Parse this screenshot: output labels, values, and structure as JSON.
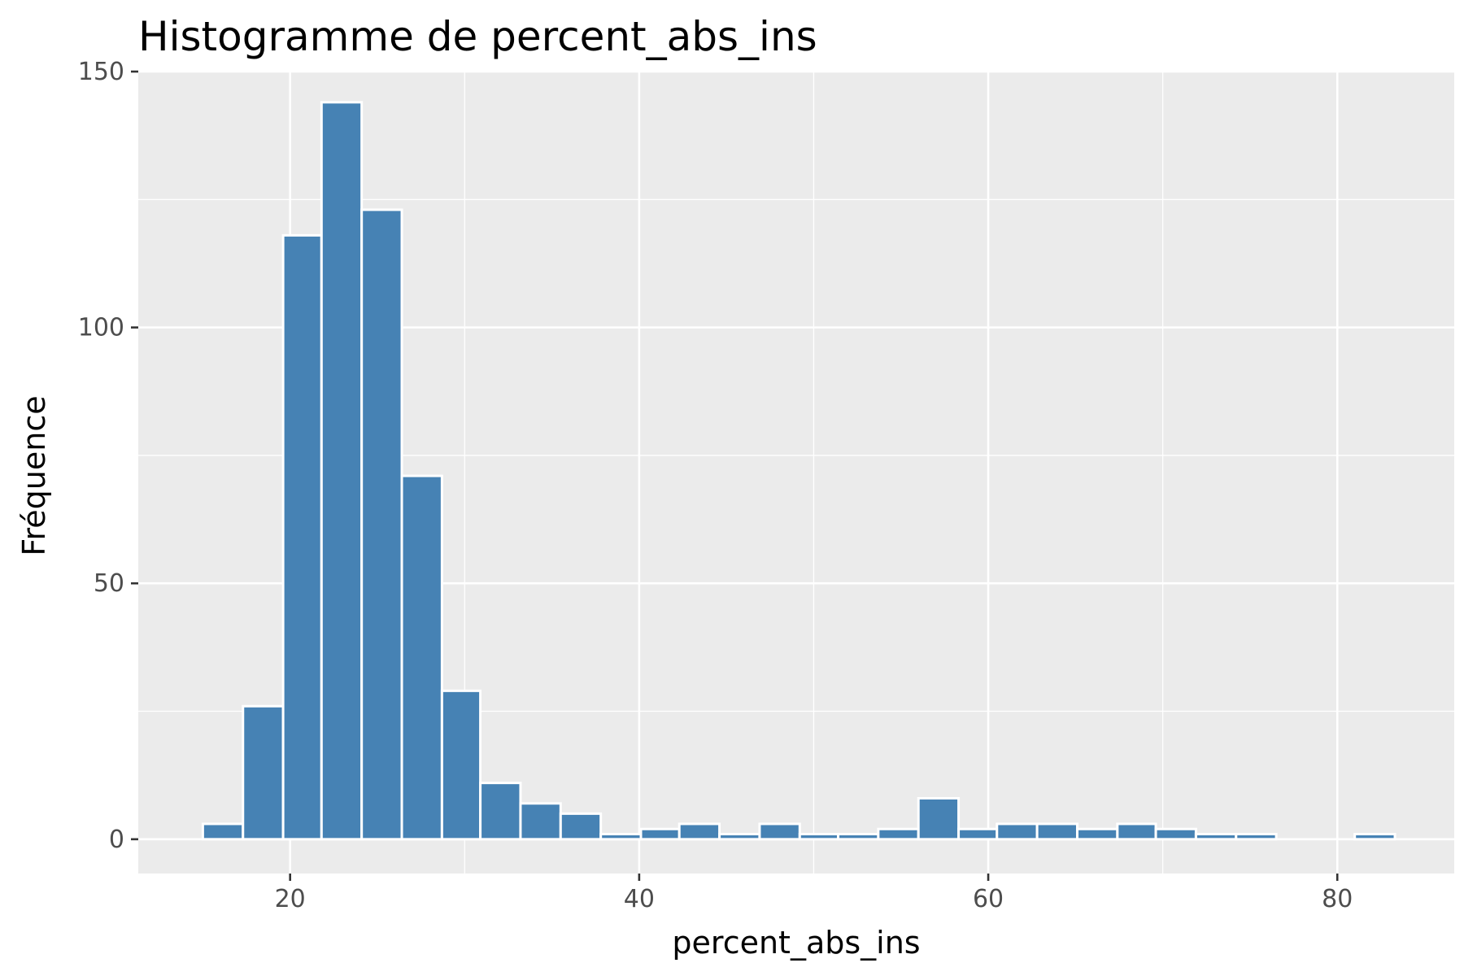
{
  "chart_data": {
    "type": "bar",
    "title": "Histogramme de percent_abs_ins",
    "xlabel": "percent_abs_ins",
    "ylabel": "Fréquence",
    "xlim": [
      11.3,
      86.7
    ],
    "ylim": [
      -6.7,
      150
    ],
    "x_ticks": [
      20,
      40,
      60,
      80
    ],
    "y_ticks": [
      0,
      50,
      100,
      150
    ],
    "bins": [
      {
        "x0": 15.0,
        "x1": 17.3,
        "count": 3
      },
      {
        "x0": 17.3,
        "x1": 19.6,
        "count": 26
      },
      {
        "x0": 19.6,
        "x1": 21.8,
        "count": 118
      },
      {
        "x0": 21.8,
        "x1": 24.1,
        "count": 144
      },
      {
        "x0": 24.1,
        "x1": 26.4,
        "count": 123
      },
      {
        "x0": 26.4,
        "x1": 28.7,
        "count": 71
      },
      {
        "x0": 28.7,
        "x1": 30.9,
        "count": 29
      },
      {
        "x0": 30.9,
        "x1": 33.2,
        "count": 11
      },
      {
        "x0": 33.2,
        "x1": 35.5,
        "count": 7
      },
      {
        "x0": 35.5,
        "x1": 37.8,
        "count": 5
      },
      {
        "x0": 37.8,
        "x1": 40.1,
        "count": 1
      },
      {
        "x0": 40.1,
        "x1": 42.3,
        "count": 2
      },
      {
        "x0": 42.3,
        "x1": 44.6,
        "count": 3
      },
      {
        "x0": 44.6,
        "x1": 46.9,
        "count": 1
      },
      {
        "x0": 46.9,
        "x1": 49.2,
        "count": 3
      },
      {
        "x0": 49.2,
        "x1": 51.4,
        "count": 1
      },
      {
        "x0": 51.4,
        "x1": 53.7,
        "count": 1
      },
      {
        "x0": 53.7,
        "x1": 56.0,
        "count": 2
      },
      {
        "x0": 56.0,
        "x1": 58.3,
        "count": 8
      },
      {
        "x0": 58.3,
        "x1": 60.5,
        "count": 2
      },
      {
        "x0": 60.5,
        "x1": 62.8,
        "count": 3
      },
      {
        "x0": 62.8,
        "x1": 65.1,
        "count": 3
      },
      {
        "x0": 65.1,
        "x1": 67.4,
        "count": 2
      },
      {
        "x0": 67.4,
        "x1": 69.6,
        "count": 3
      },
      {
        "x0": 69.6,
        "x1": 71.9,
        "count": 2
      },
      {
        "x0": 71.9,
        "x1": 74.2,
        "count": 1
      },
      {
        "x0": 74.2,
        "x1": 76.5,
        "count": 1
      },
      {
        "x0": 76.5,
        "x1": 78.7,
        "count": 0
      },
      {
        "x0": 78.7,
        "x1": 81.0,
        "count": 0
      },
      {
        "x0": 81.0,
        "x1": 83.3,
        "count": 1
      }
    ],
    "grid": true,
    "colors": {
      "bar_fill": "#4682b4",
      "bar_outline": "#ffffff",
      "panel_background": "#ebebeb",
      "grid": "#ffffff"
    }
  }
}
